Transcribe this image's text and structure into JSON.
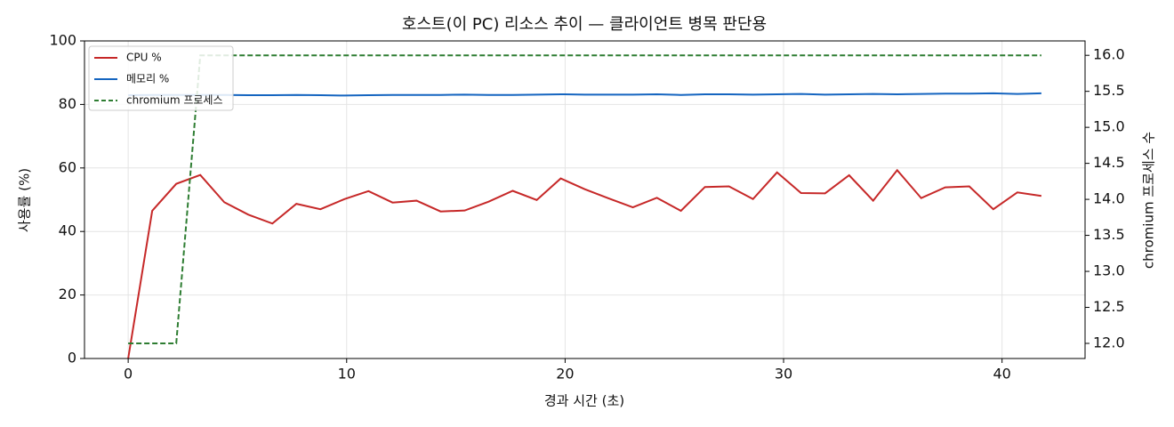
{
  "chart_data": {
    "type": "line",
    "title": "호스트(이 PC) 리소스 추이 — 클라이언트 병목 판단용",
    "xlabel": "경과 시간 (초)",
    "ylabel": "사용률 (%)",
    "y2label": "chromium 프로세스 수",
    "x": [
      0,
      1.1,
      2.2,
      3.3,
      4.4,
      5.5,
      6.6,
      7.7,
      8.8,
      9.9,
      11,
      12.1,
      13.2,
      14.3,
      15.4,
      16.5,
      17.6,
      18.7,
      19.8,
      20.9,
      22,
      23.1,
      24.2,
      25.3,
      26.4,
      27.5,
      28.6,
      29.7,
      30.8,
      31.9,
      33,
      34.1,
      35.2,
      36.3,
      37.4,
      38.5,
      39.6,
      40.7,
      41.8
    ],
    "series": [
      {
        "name": "CPU %",
        "color": "#c62828",
        "linestyle": "solid",
        "values": [
          0,
          46.5,
          55,
          57.8,
          49.2,
          45.3,
          42.5,
          48.7,
          47,
          50.2,
          52.7,
          49.1,
          49.7,
          46.3,
          46.6,
          49.4,
          52.8,
          49.9,
          56.7,
          53.3,
          50.4,
          47.6,
          50.6,
          46.5,
          54,
          54.2,
          50.2,
          58.6,
          52.1,
          52,
          57.7,
          49.7,
          59.3,
          50.5,
          53.9,
          54.2,
          47,
          52.3,
          51.2
        ]
      },
      {
        "name": "메모리 %",
        "color": "#1565c0",
        "linestyle": "solid",
        "values": [
          82.9,
          83.0,
          83.0,
          83.0,
          83.0,
          82.9,
          82.9,
          83.0,
          82.9,
          82.8,
          82.9,
          83.0,
          83.0,
          83.0,
          83.1,
          83.0,
          83.0,
          83.1,
          83.2,
          83.1,
          83.1,
          83.1,
          83.2,
          83.0,
          83.2,
          83.2,
          83.1,
          83.2,
          83.3,
          83.1,
          83.2,
          83.3,
          83.2,
          83.3,
          83.4,
          83.4,
          83.5,
          83.3,
          83.5
        ]
      },
      {
        "name": "chromium 프로세스",
        "color": "#2e7d32",
        "linestyle": "dashed",
        "axis": "y2",
        "values": [
          12,
          12,
          12,
          16,
          16,
          16,
          16,
          16,
          16,
          16,
          16,
          16,
          16,
          16,
          16,
          16,
          16,
          16,
          16,
          16,
          16,
          16,
          16,
          16,
          16,
          16,
          16,
          16,
          16,
          16,
          16,
          16,
          16,
          16,
          16,
          16,
          16,
          16,
          16
        ]
      }
    ],
    "xlim": [
      -2,
      43.8
    ],
    "xticks": [
      0,
      10,
      20,
      30,
      40
    ],
    "ylim": [
      0,
      100
    ],
    "yticks": [
      0,
      20,
      40,
      60,
      80,
      100
    ],
    "y2lim": [
      11.79,
      16.2
    ],
    "y2ticks": [
      {
        "value": 12,
        "label": "12.0"
      },
      12.5,
      {
        "value": 13,
        "label": "13.0"
      },
      13.5,
      {
        "value": 14,
        "label": "14.0"
      },
      14.5,
      {
        "value": 15,
        "label": "15.0"
      },
      15.5,
      {
        "value": 16,
        "label": "16.0"
      }
    ],
    "grid": true,
    "legend": "upper-left"
  }
}
